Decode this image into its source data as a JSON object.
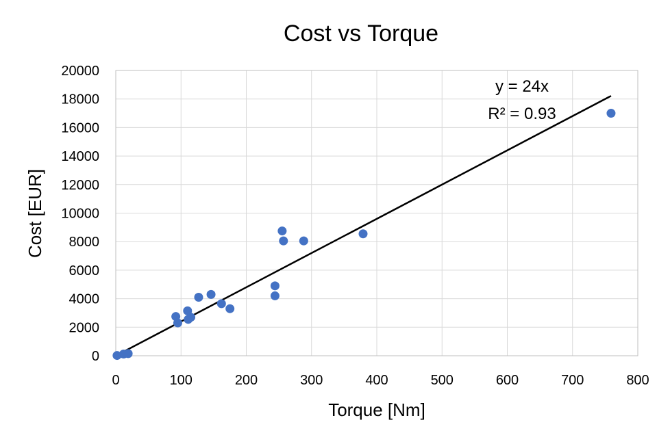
{
  "chart_data": {
    "type": "scatter",
    "title": "Cost vs Torque",
    "xlabel": "Torque [Nm]",
    "ylabel": "Cost [EUR]",
    "xlim": [
      0,
      800
    ],
    "ylim": [
      0,
      20000
    ],
    "xticks": [
      0,
      100,
      200,
      300,
      400,
      500,
      600,
      700,
      800
    ],
    "yticks": [
      0,
      2000,
      4000,
      6000,
      8000,
      10000,
      12000,
      14000,
      16000,
      18000,
      20000
    ],
    "grid": true,
    "marker_color": "#4472c4",
    "trendline_color": "#000000",
    "trendline": {
      "slope": 24,
      "equation": "y = 24x",
      "r2_label": "R² = 0.93"
    },
    "points": [
      {
        "x": 2,
        "y": 20
      },
      {
        "x": 12,
        "y": 120
      },
      {
        "x": 19,
        "y": 150
      },
      {
        "x": 92,
        "y": 2750
      },
      {
        "x": 95,
        "y": 2300
      },
      {
        "x": 110,
        "y": 3150
      },
      {
        "x": 111,
        "y": 2550
      },
      {
        "x": 115,
        "y": 2700
      },
      {
        "x": 127,
        "y": 4100
      },
      {
        "x": 146,
        "y": 4300
      },
      {
        "x": 162,
        "y": 3650
      },
      {
        "x": 175,
        "y": 3300
      },
      {
        "x": 244,
        "y": 4900
      },
      {
        "x": 244,
        "y": 4200
      },
      {
        "x": 255,
        "y": 8750
      },
      {
        "x": 257,
        "y": 8050
      },
      {
        "x": 288,
        "y": 8050
      },
      {
        "x": 379,
        "y": 8550
      },
      {
        "x": 759,
        "y": 17000
      }
    ]
  }
}
